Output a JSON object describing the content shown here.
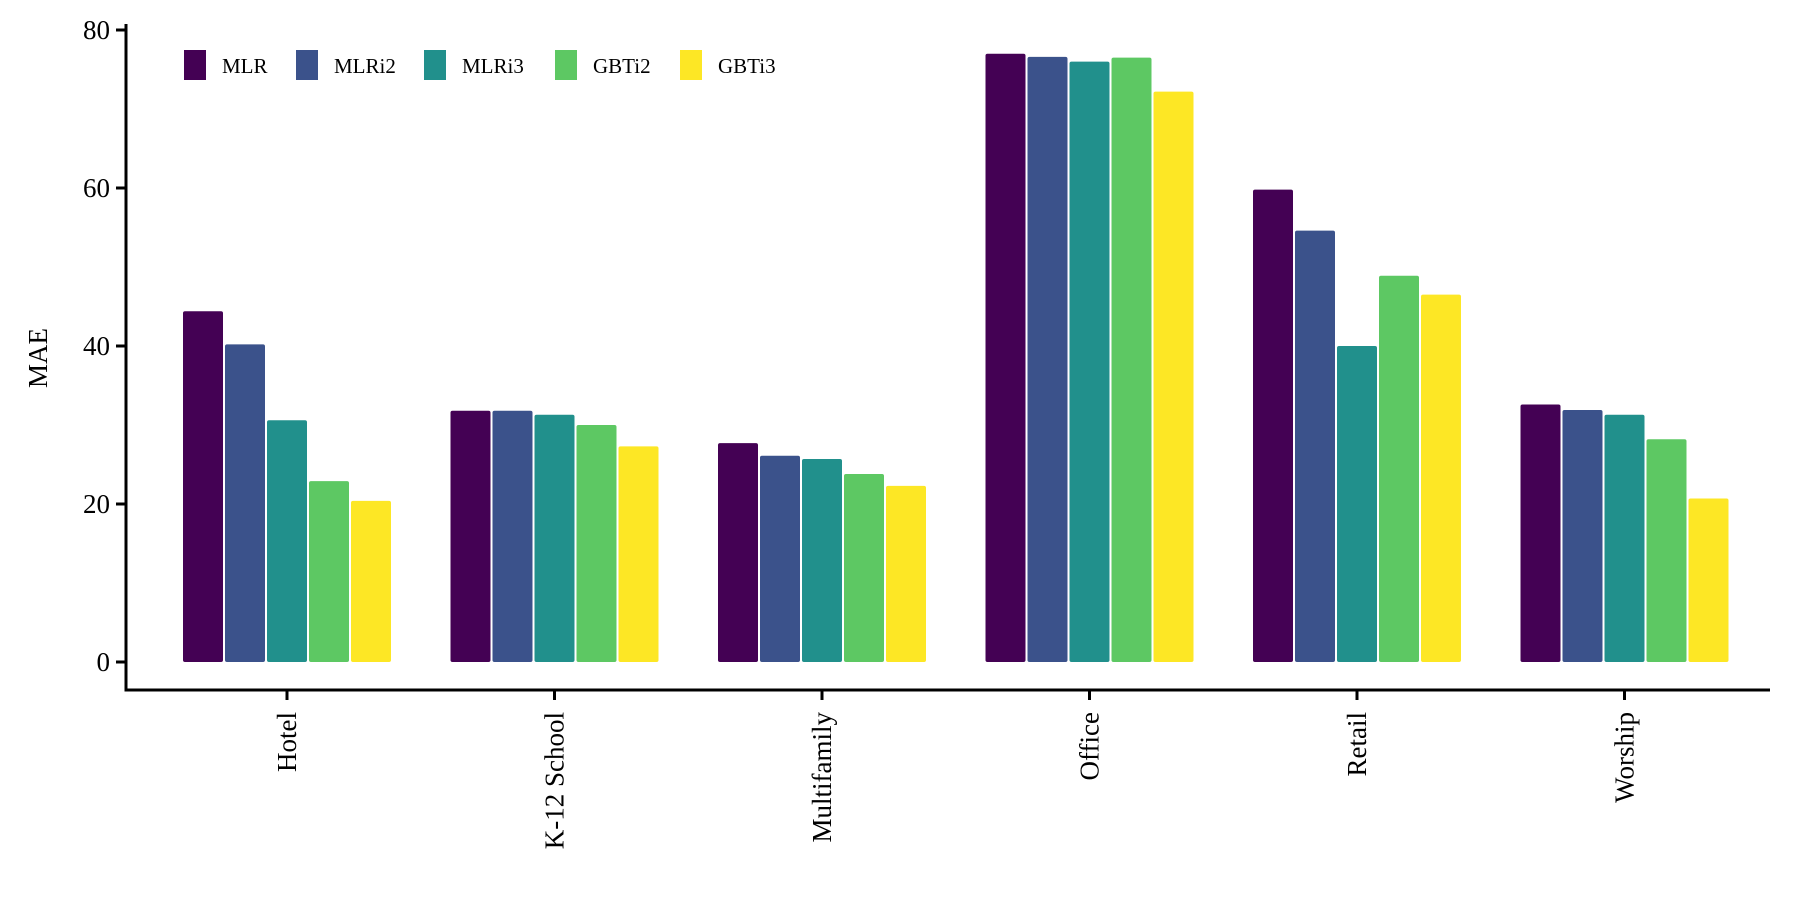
{
  "chart_data": {
    "type": "bar",
    "title": "",
    "xlabel": "",
    "ylabel": "MAE",
    "ylim": [
      0,
      80
    ],
    "yticks": [
      0,
      20,
      40,
      60,
      80
    ],
    "grid": false,
    "legend_position": "top-left",
    "categories": [
      "Hotel",
      "K-12 School",
      "Multifamily",
      "Office",
      "Retail",
      "Worship"
    ],
    "series": [
      {
        "name": "MLR",
        "color": "#440154",
        "values": [
          44.4,
          31.8,
          27.7,
          77.0,
          59.8,
          32.6
        ]
      },
      {
        "name": "MLRi2",
        "color": "#3B528B",
        "values": [
          40.2,
          31.8,
          26.1,
          76.6,
          54.6,
          31.9
        ]
      },
      {
        "name": "MLRi3",
        "color": "#21908C",
        "values": [
          30.6,
          31.3,
          25.7,
          76.0,
          40.0,
          31.3
        ]
      },
      {
        "name": "GBTi2",
        "color": "#5DC863",
        "values": [
          22.9,
          30.0,
          23.8,
          76.5,
          48.9,
          28.2
        ]
      },
      {
        "name": "GBTi3",
        "color": "#FDE725",
        "values": [
          20.4,
          27.3,
          22.3,
          72.2,
          46.5,
          20.7
        ]
      }
    ]
  }
}
